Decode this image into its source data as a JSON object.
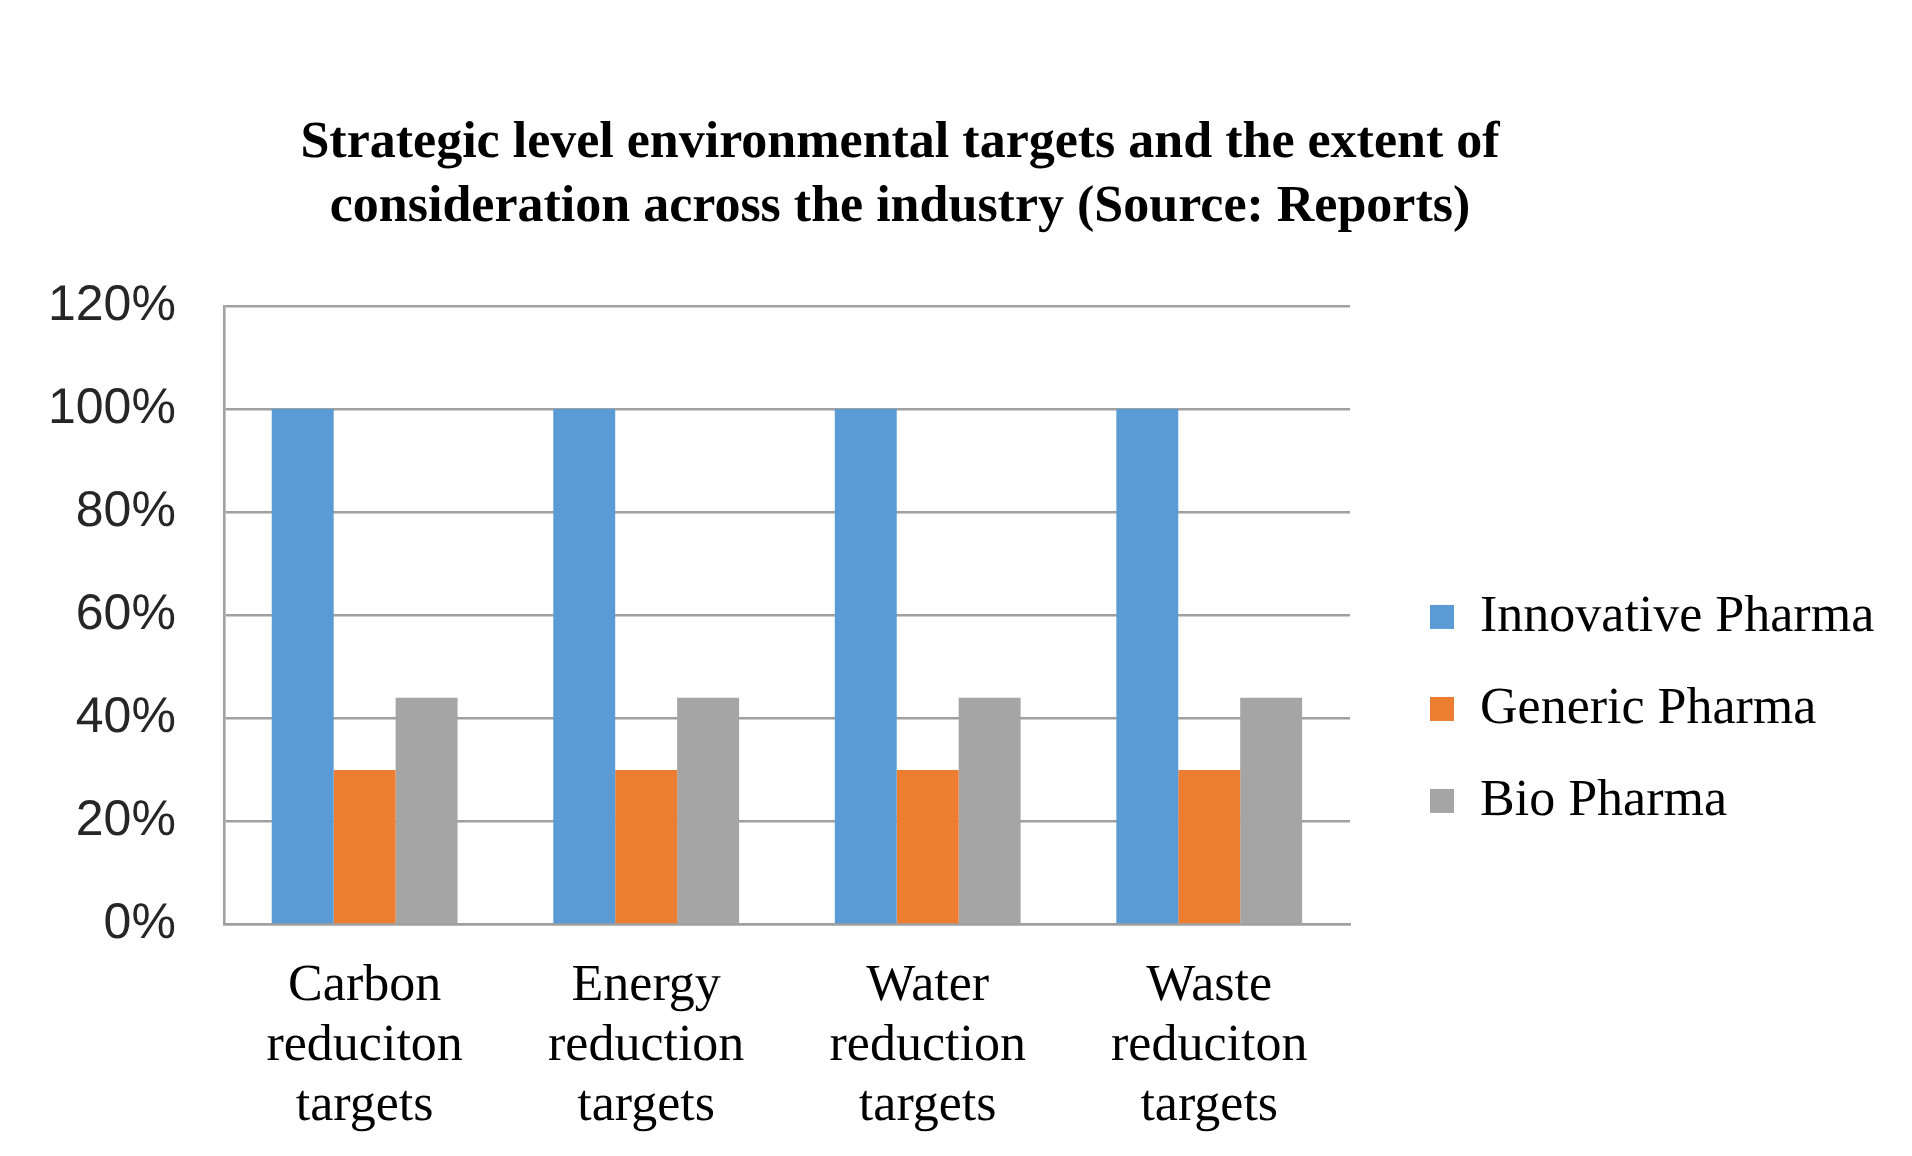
{
  "chart_data": {
    "type": "bar",
    "title": "Strategic level environmental targets and the extent of consideration across the industry (Source: Reports)",
    "categories": [
      "Carbon reduciton targets",
      "Energy reduction targets",
      "Water reduction targets",
      "Waste reduciton targets"
    ],
    "series": [
      {
        "name": "Innovative Pharma",
        "color": "#5b9bd5",
        "values": [
          100,
          100,
          100,
          100
        ]
      },
      {
        "name": "Generic Pharma",
        "color": "#ed7d31",
        "values": [
          30,
          30,
          30,
          30
        ]
      },
      {
        "name": "Bio Pharma",
        "color": "#a5a5a5",
        "values": [
          44,
          44,
          44,
          44
        ]
      }
    ],
    "ylim": [
      0,
      120
    ],
    "yticks": [
      {
        "value": 0,
        "label": "0%"
      },
      {
        "value": 20,
        "label": "20%"
      },
      {
        "value": 40,
        "label": "40%"
      },
      {
        "value": 60,
        "label": "60%"
      },
      {
        "value": 80,
        "label": "80%"
      },
      {
        "value": 100,
        "label": "100%"
      },
      {
        "value": 120,
        "label": "120%"
      }
    ],
    "grid": "y",
    "legend": "right"
  }
}
